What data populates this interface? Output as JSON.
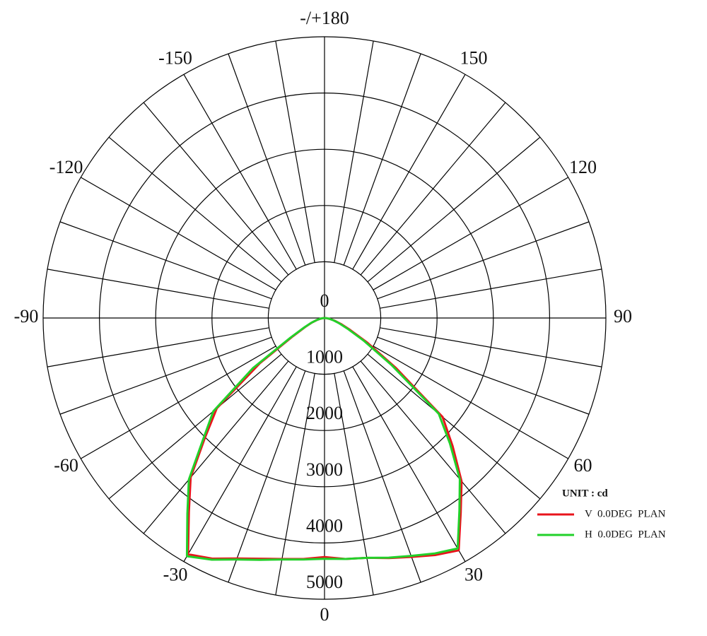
{
  "chart_data": {
    "type": "polar",
    "unit_label": "UNIT : cd",
    "rlim": [
      0,
      5000
    ],
    "rticks": [
      0,
      1000,
      2000,
      3000,
      4000,
      5000
    ],
    "angle_ticks": [
      0,
      30,
      60,
      90,
      120,
      150,
      {
        "value": 180,
        "label": "-/+180"
      },
      -150,
      -120,
      -90,
      -60,
      -30
    ],
    "angle_grid_step": 10,
    "x": [
      -90,
      -85,
      -80,
      -75,
      -70,
      -65,
      -60,
      -55,
      -50,
      -45,
      -40,
      -35,
      -30,
      -25,
      -20,
      -15,
      -10,
      -5,
      0,
      5,
      10,
      15,
      20,
      25,
      30,
      35,
      40,
      45,
      50,
      55,
      60,
      65,
      70,
      75,
      80,
      85,
      90
    ],
    "series": [
      {
        "name": "V  0.0DEG  PLAN",
        "color": "#e8141c",
        "values": [
          0,
          30,
          70,
          140,
          240,
          380,
          650,
          1400,
          2500,
          3000,
          3700,
          4200,
          4850,
          4720,
          4550,
          4430,
          4350,
          4300,
          4250,
          4300,
          4330,
          4420,
          4520,
          4650,
          4770,
          4220,
          3790,
          3220,
          2740,
          1550,
          880,
          500,
          310,
          190,
          100,
          40,
          0
        ]
      },
      {
        "name": "H  0.0DEG  PLAN",
        "color": "#22d12a",
        "values": [
          0,
          30,
          80,
          150,
          250,
          400,
          700,
          1550,
          2580,
          3050,
          3750,
          4250,
          4890,
          4740,
          4570,
          4450,
          4360,
          4310,
          4280,
          4300,
          4330,
          4410,
          4500,
          4620,
          4730,
          4180,
          3740,
          3150,
          2650,
          1450,
          800,
          450,
          280,
          170,
          90,
          35,
          0
        ]
      }
    ]
  }
}
